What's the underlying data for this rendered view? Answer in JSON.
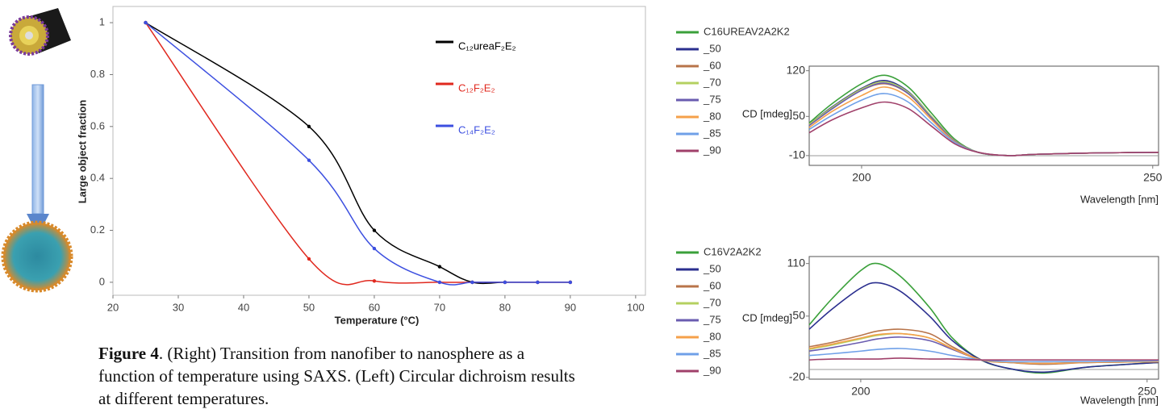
{
  "chart_data": [
    {
      "type": "line",
      "x_label": "Temperature (°C)",
      "y_label": "Large object fraction",
      "x": [
        25,
        50,
        60,
        70,
        75,
        80,
        85,
        90
      ],
      "series": [
        {
          "name": "C₁₂ureaF₂E₂",
          "color": "#000000",
          "values": [
            1,
            0.6,
            0.2,
            0.06,
            0,
            0,
            0,
            0
          ]
        },
        {
          "name": "C₁₂F₂E₂",
          "color": "#e0281e",
          "values": [
            1,
            0.09,
            0.005,
            0,
            0,
            0,
            0,
            0
          ]
        },
        {
          "name": "C₁₄F₂E₂",
          "color": "#3c4fe0",
          "values": [
            1,
            0.47,
            0.13,
            0,
            0,
            0,
            0,
            0
          ]
        }
      ],
      "markers": true,
      "smooth": true,
      "xlim": [
        20,
        101.5
      ],
      "xticks": [
        20,
        30,
        40,
        50,
        60,
        70,
        80,
        90,
        100
      ],
      "ylim": [
        -0.05,
        1.05
      ],
      "yticks": [
        0,
        0.2,
        0.4,
        0.6,
        0.8,
        1
      ]
    },
    {
      "type": "line",
      "x_label": "Wavelength [nm]",
      "y_label": "CD [mdeg]",
      "x": [
        191,
        195,
        200,
        204,
        208,
        212,
        216,
        220,
        225,
        230,
        240,
        251
      ],
      "series": [
        {
          "name": "C16UREAV2A2K2",
          "color": "#3aa03a",
          "values": [
            40,
            70,
            100,
            113,
            95,
            55,
            15,
            -5,
            -10,
            -8,
            -6,
            -5
          ]
        },
        {
          "name": "_50",
          "color": "#2b2f8f",
          "values": [
            38,
            65,
            93,
            105,
            88,
            50,
            13,
            -5,
            -10,
            -8,
            -6,
            -5
          ]
        },
        {
          "name": "_60",
          "color": "#b8744a",
          "values": [
            37,
            63,
            90,
            100,
            85,
            48,
            12,
            -5,
            -10,
            -8,
            -6,
            -5
          ]
        },
        {
          "name": "_70",
          "color": "#b4d060",
          "values": [
            38,
            64,
            92,
            103,
            87,
            50,
            13,
            -5,
            -10,
            -8,
            -6,
            -5
          ]
        },
        {
          "name": "_75",
          "color": "#6a5cb0",
          "values": [
            36,
            62,
            90,
            101,
            85,
            48,
            12,
            -5,
            -10,
            -8,
            -6,
            -5
          ]
        },
        {
          "name": "_80",
          "color": "#f5a04a",
          "values": [
            33,
            58,
            82,
            95,
            80,
            45,
            11,
            -5,
            -10,
            -8,
            -6,
            -5
          ]
        },
        {
          "name": "_85",
          "color": "#6fa0e8",
          "values": [
            30,
            52,
            75,
            85,
            72,
            40,
            10,
            -5,
            -10,
            -8,
            -6,
            -5
          ]
        },
        {
          "name": "_90",
          "color": "#a0406a",
          "values": [
            25,
            45,
            63,
            72,
            62,
            35,
            8,
            -5,
            -10,
            -8,
            -6,
            -5
          ]
        }
      ],
      "smooth": true,
      "xlim": [
        191,
        251
      ],
      "xticks": [
        200,
        250
      ],
      "ylim": [
        -25,
        127
      ],
      "yticks": [
        120,
        50,
        -10
      ]
    },
    {
      "type": "line",
      "x_label": "Wavelength [nm]",
      "y_label": "CD [mdeg]",
      "x": [
        191,
        195,
        200,
        203,
        207,
        212,
        216,
        221,
        226,
        232,
        240,
        252
      ],
      "series": [
        {
          "name": "C16V2A2K2",
          "color": "#3aa03a",
          "values": [
            40,
            70,
            102,
            110,
            95,
            60,
            25,
            0,
            -10,
            -15,
            -8,
            -3
          ]
        },
        {
          "name": "_50",
          "color": "#2b2f8f",
          "values": [
            35,
            58,
            82,
            88,
            78,
            50,
            22,
            0,
            -10,
            -14,
            -8,
            -3
          ]
        },
        {
          "name": "_60",
          "color": "#b8744a",
          "values": [
            15,
            20,
            28,
            33,
            35,
            30,
            15,
            0,
            -3,
            -5,
            -3,
            -2
          ]
        },
        {
          "name": "_70",
          "color": "#b4d060",
          "values": [
            12,
            17,
            24,
            28,
            30,
            25,
            13,
            0,
            -3,
            -4,
            -3,
            -2
          ]
        },
        {
          "name": "_75",
          "color": "#6a5cb0",
          "values": [
            10,
            14,
            20,
            24,
            26,
            22,
            12,
            0,
            -3,
            -4,
            -3,
            -2
          ]
        },
        {
          "name": "_80",
          "color": "#f5a04a",
          "values": [
            13,
            18,
            25,
            29,
            30,
            25,
            13,
            0,
            -3,
            -4,
            -3,
            -2
          ]
        },
        {
          "name": "_85",
          "color": "#6fa0e8",
          "values": [
            5,
            7,
            10,
            12,
            13,
            10,
            5,
            0,
            -2,
            -2,
            -2,
            -1
          ]
        },
        {
          "name": "_90",
          "color": "#a0406a",
          "values": [
            0,
            1,
            1,
            1,
            2,
            1,
            1,
            0,
            0,
            0,
            0,
            0
          ]
        }
      ],
      "smooth": true,
      "xlim": [
        191,
        252
      ],
      "xticks": [
        200,
        250
      ],
      "ylim": [
        -22,
        118
      ],
      "yticks": [
        110,
        50,
        -20
      ]
    }
  ],
  "caption": {
    "label": "Figure 4",
    "text": ". (Right) Transition from nanofiber to nanosphere as a function of temperature using SAXS. (Left) Circular dichroism results at different temperatures."
  }
}
